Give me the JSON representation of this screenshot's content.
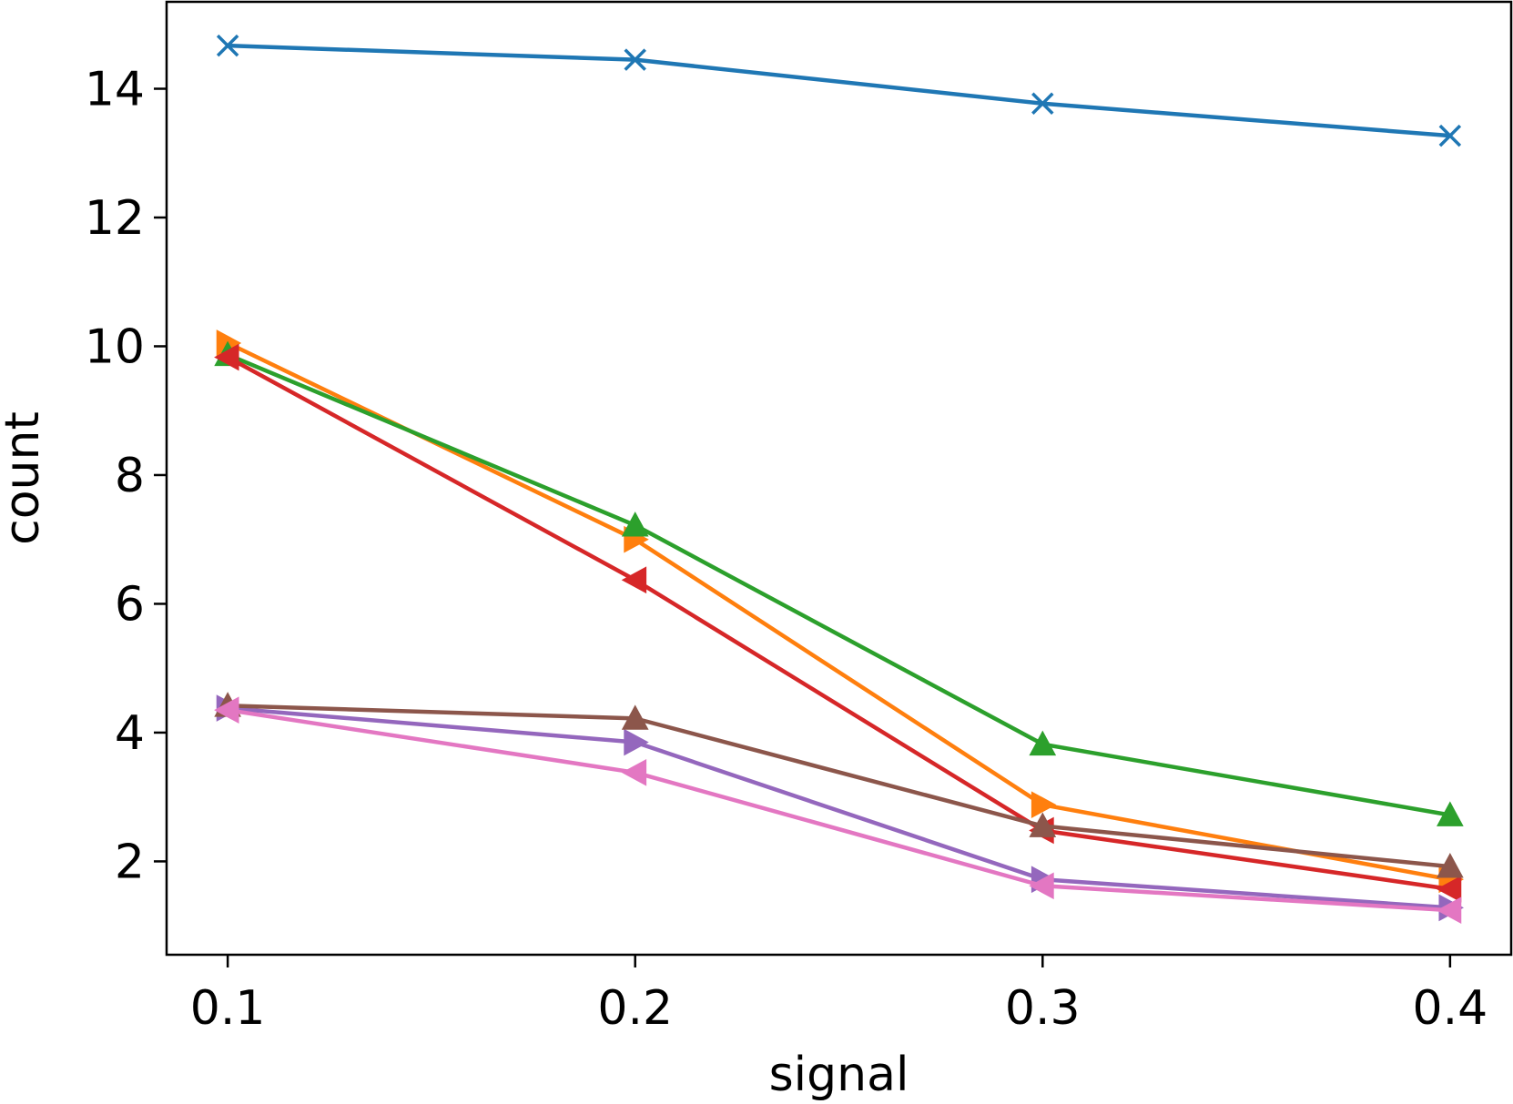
{
  "chart_data": {
    "type": "line",
    "title": "",
    "xlabel": "signal",
    "ylabel": "count",
    "x": [
      0.1,
      0.2,
      0.3,
      0.4
    ],
    "xticks": [
      "0.1",
      "0.2",
      "0.3",
      "0.4"
    ],
    "yticks": [
      "2",
      "4",
      "6",
      "8",
      "10",
      "12",
      "14"
    ],
    "xlim": [
      0.085,
      0.415
    ],
    "ylim": [
      0.55,
      15.35
    ],
    "grid": false,
    "legend": "none",
    "series": [
      {
        "color": "#1f77b4",
        "marker": "x",
        "values": [
          14.67,
          14.45,
          13.77,
          13.27
        ]
      },
      {
        "color": "#ff7f0e",
        "marker": "triangle-right",
        "values": [
          10.05,
          7.0,
          2.88,
          1.72
        ]
      },
      {
        "color": "#2ca02c",
        "marker": "triangle-up",
        "values": [
          9.87,
          7.22,
          3.82,
          2.72
        ]
      },
      {
        "color": "#d62728",
        "marker": "triangle-left",
        "values": [
          9.83,
          6.37,
          2.48,
          1.57
        ]
      },
      {
        "color": "#9467bd",
        "marker": "triangle-right",
        "values": [
          4.38,
          3.85,
          1.72,
          1.28
        ]
      },
      {
        "color": "#8c564b",
        "marker": "triangle-up",
        "values": [
          4.42,
          4.22,
          2.55,
          1.92
        ]
      },
      {
        "color": "#e377c2",
        "marker": "triangle-left",
        "values": [
          4.35,
          3.38,
          1.62,
          1.24
        ]
      }
    ]
  }
}
